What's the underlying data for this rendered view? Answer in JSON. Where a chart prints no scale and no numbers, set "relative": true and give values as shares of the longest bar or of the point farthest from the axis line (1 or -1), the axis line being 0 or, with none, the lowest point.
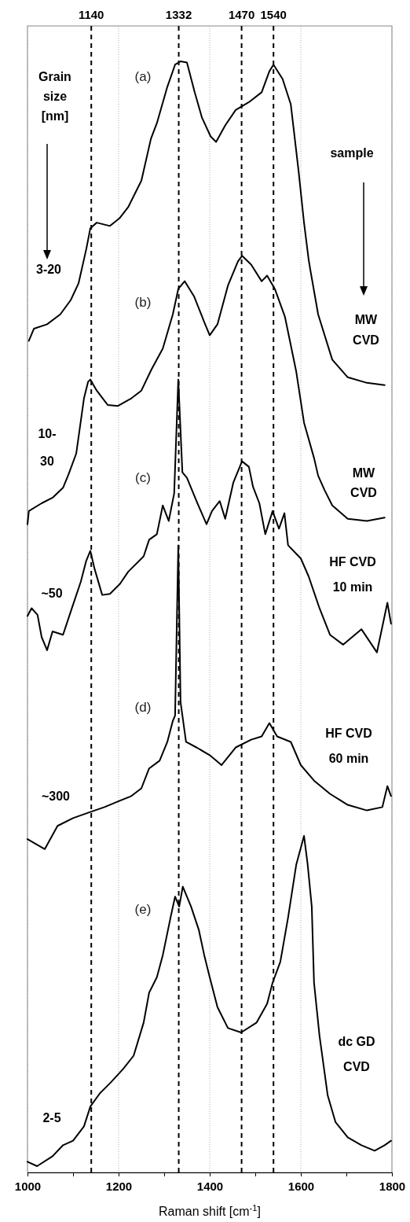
{
  "chart_data": {
    "type": "line",
    "relative": true,
    "xlabel": "Raman shift [cm$^{-1}$]",
    "xlim": [
      1000,
      1800
    ],
    "xticks": [
      1000,
      {
        "value": 1100,
        "label": null
      },
      1200,
      {
        "value": 1300,
        "label": null
      },
      1400,
      {
        "value": 1500,
        "label": null
      },
      1600,
      {
        "value": 1700,
        "label": null
      },
      1800
    ],
    "grid": "x",
    "legend": false,
    "marker": "none",
    "line_style": "solid",
    "ref_lines": [
      {
        "axis": "x",
        "value": 1140,
        "label": "1140",
        "line_style": "dashed"
      },
      {
        "axis": "x",
        "value": 1332,
        "label": "1332",
        "line_style": "dashed"
      },
      {
        "axis": "x",
        "value": 1470,
        "label": "1470",
        "line_style": "dashed"
      },
      {
        "axis": "x",
        "value": 1540,
        "label": "1540",
        "line_style": "dashed"
      }
    ],
    "annotations": [
      "Grain\nsize\n[nm]",
      "3-20",
      "10-\n30",
      "~50",
      "~300",
      "2-5",
      "sample",
      "MW\nCVD",
      "MW\nCVD",
      "HF CVD\n10 min",
      "HF CVD\n60 min",
      "dc GD\nCVD"
    ],
    "series": [
      {
        "name": "(a)",
        "color": "#000000",
        "x": [
          1003,
          1014,
          1043,
          1072,
          1095,
          1112,
          1129,
          1138,
          1152,
          1181,
          1202,
          1221,
          1250,
          1271,
          1284,
          1307,
          1324,
          1336,
          1350,
          1367,
          1383,
          1402,
          1414,
          1434,
          1457,
          1486,
          1514,
          1531,
          1540,
          1560,
          1578,
          1595,
          1607,
          1617,
          1621,
          1638,
          1669,
          1703,
          1745,
          1784
        ],
        "values": [
          0.747,
          0.758,
          0.762,
          0.771,
          0.784,
          0.799,
          0.83,
          0.849,
          0.854,
          0.851,
          0.858,
          0.868,
          0.892,
          0.93,
          0.944,
          0.977,
          0.997,
          1.0,
          0.999,
          0.972,
          0.949,
          0.932,
          0.927,
          0.942,
          0.956,
          0.963,
          0.972,
          0.991,
          0.997,
          0.984,
          0.961,
          0.901,
          0.854,
          0.821,
          0.811,
          0.771,
          0.73,
          0.714,
          0.709,
          0.707
        ]
      },
      {
        "name": "(b)",
        "color": "#000000",
        "x": [
          1000,
          1003,
          1031,
          1055,
          1078,
          1090,
          1107,
          1124,
          1133,
          1138,
          1152,
          1176,
          1198,
          1228,
          1250,
          1272,
          1297,
          1319,
          1331,
          1345,
          1366,
          1388,
          1400,
          1417,
          1440,
          1462,
          1471,
          1491,
          1514,
          1526,
          1543,
          1565,
          1590,
          1607,
          1629,
          1638,
          1652,
          1669,
          1703,
          1745,
          1784
        ],
        "values": [
          0.581,
          0.593,
          0.6,
          0.605,
          0.614,
          0.626,
          0.645,
          0.695,
          0.71,
          0.712,
          0.702,
          0.689,
          0.688,
          0.695,
          0.702,
          0.721,
          0.74,
          0.771,
          0.794,
          0.801,
          0.787,
          0.764,
          0.752,
          0.762,
          0.797,
          0.819,
          0.824,
          0.816,
          0.801,
          0.806,
          0.794,
          0.769,
          0.719,
          0.673,
          0.641,
          0.625,
          0.612,
          0.598,
          0.586,
          0.584,
          0.587
        ]
      },
      {
        "name": "(c)",
        "color": "#000000",
        "x": [
          1000,
          1009,
          1022,
          1031,
          1043,
          1055,
          1078,
          1095,
          1117,
          1129,
          1138,
          1147,
          1164,
          1181,
          1203,
          1221,
          1255,
          1267,
          1284,
          1297,
          1310,
          1322,
          1331,
          1340,
          1350,
          1371,
          1393,
          1405,
          1422,
          1434,
          1452,
          1471,
          1486,
          1495,
          1509,
          1522,
          1538,
          1552,
          1564,
          1572,
          1600,
          1617,
          1641,
          1664,
          1693,
          1733,
          1767,
          1790,
          1798
        ],
        "values": [
          0.498,
          0.505,
          0.499,
          0.479,
          0.467,
          0.484,
          0.481,
          0.502,
          0.529,
          0.548,
          0.557,
          0.541,
          0.517,
          0.518,
          0.527,
          0.538,
          0.552,
          0.567,
          0.572,
          0.598,
          0.584,
          0.609,
          0.712,
          0.628,
          0.623,
          0.602,
          0.581,
          0.593,
          0.602,
          0.586,
          0.619,
          0.638,
          0.633,
          0.615,
          0.6,
          0.572,
          0.593,
          0.577,
          0.591,
          0.562,
          0.55,
          0.534,
          0.505,
          0.481,
          0.472,
          0.486,
          0.465,
          0.51,
          0.491
        ]
      },
      {
        "name": "(d)",
        "color": "#000000",
        "x": [
          1000,
          1038,
          1066,
          1100,
          1134,
          1169,
          1198,
          1228,
          1250,
          1267,
          1290,
          1307,
          1319,
          1324,
          1331,
          1336,
          1348,
          1371,
          1400,
          1426,
          1457,
          1491,
          1514,
          1531,
          1548,
          1578,
          1600,
          1629,
          1664,
          1703,
          1745,
          1779,
          1790,
          1798
        ],
        "values": [
          0.296,
          0.287,
          0.308,
          0.315,
          0.32,
          0.325,
          0.33,
          0.335,
          0.342,
          0.36,
          0.367,
          0.384,
          0.403,
          0.408,
          0.562,
          0.42,
          0.384,
          0.379,
          0.372,
          0.363,
          0.379,
          0.386,
          0.389,
          0.401,
          0.389,
          0.384,
          0.363,
          0.349,
          0.337,
          0.327,
          0.322,
          0.325,
          0.344,
          0.335
        ]
      },
      {
        "name": "(e)",
        "color": "#000000",
        "x": [
          1000,
          1021,
          1055,
          1078,
          1100,
          1124,
          1138,
          1159,
          1181,
          1210,
          1233,
          1255,
          1267,
          1284,
          1297,
          1314,
          1324,
          1333,
          1341,
          1359,
          1376,
          1388,
          1400,
          1417,
          1440,
          1469,
          1503,
          1526,
          1538,
          1555,
          1572,
          1590,
          1607,
          1615,
          1624,
          1629,
          1641,
          1659,
          1676,
          1703,
          1733,
          1762,
          1784,
          1798
        ],
        "values": [
          0.004,
          0.0,
          0.009,
          0.019,
          0.023,
          0.036,
          0.054,
          0.066,
          0.075,
          0.088,
          0.1,
          0.13,
          0.157,
          0.171,
          0.191,
          0.225,
          0.244,
          0.235,
          0.253,
          0.235,
          0.214,
          0.191,
          0.171,
          0.144,
          0.125,
          0.121,
          0.13,
          0.147,
          0.166,
          0.185,
          0.225,
          0.273,
          0.299,
          0.273,
          0.235,
          0.166,
          0.118,
          0.064,
          0.04,
          0.026,
          0.019,
          0.014,
          0.019,
          0.023
        ]
      }
    ]
  }
}
